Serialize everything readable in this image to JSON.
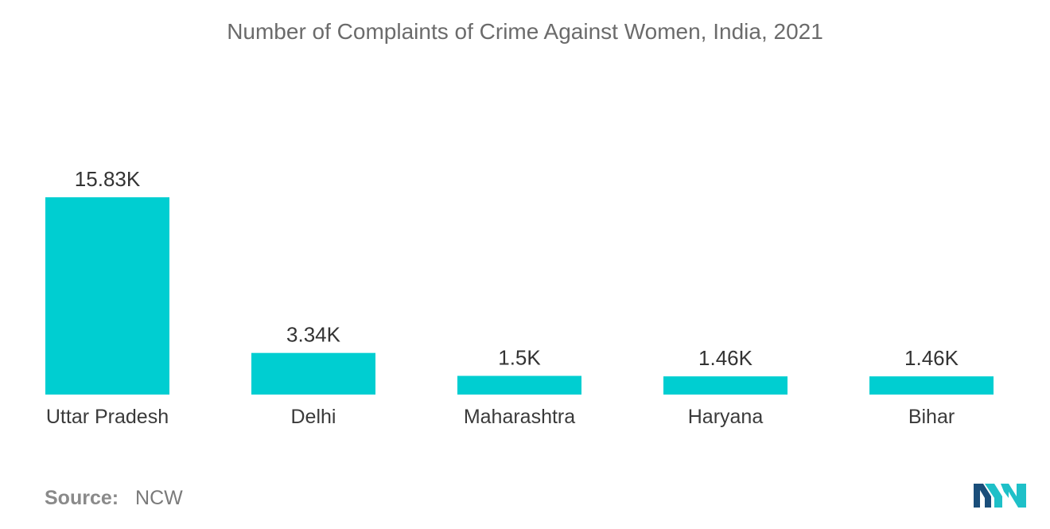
{
  "chart_data": {
    "type": "bar",
    "title": "Number of Complaints of Crime Against Women, India, 2021",
    "categories": [
      "Uttar Pradesh",
      "Delhi",
      "Maharashtra",
      "Haryana",
      "Bihar"
    ],
    "values": [
      15830,
      3340,
      1500,
      1460,
      1460
    ],
    "value_labels": [
      "15.83K",
      "3.34K",
      "1.5K",
      "1.46K",
      "1.46K"
    ],
    "xlabel": "",
    "ylabel": "",
    "ylim": [
      0,
      15830
    ],
    "grid": false,
    "legend": "none",
    "bar_color": "#00CED1"
  },
  "source": {
    "label": "Source:",
    "value": "NCW"
  },
  "logo_icon": "mordor-intelligence-logo-icon",
  "logo_colors": [
    "#1a4e7a",
    "#1ec0c8"
  ]
}
